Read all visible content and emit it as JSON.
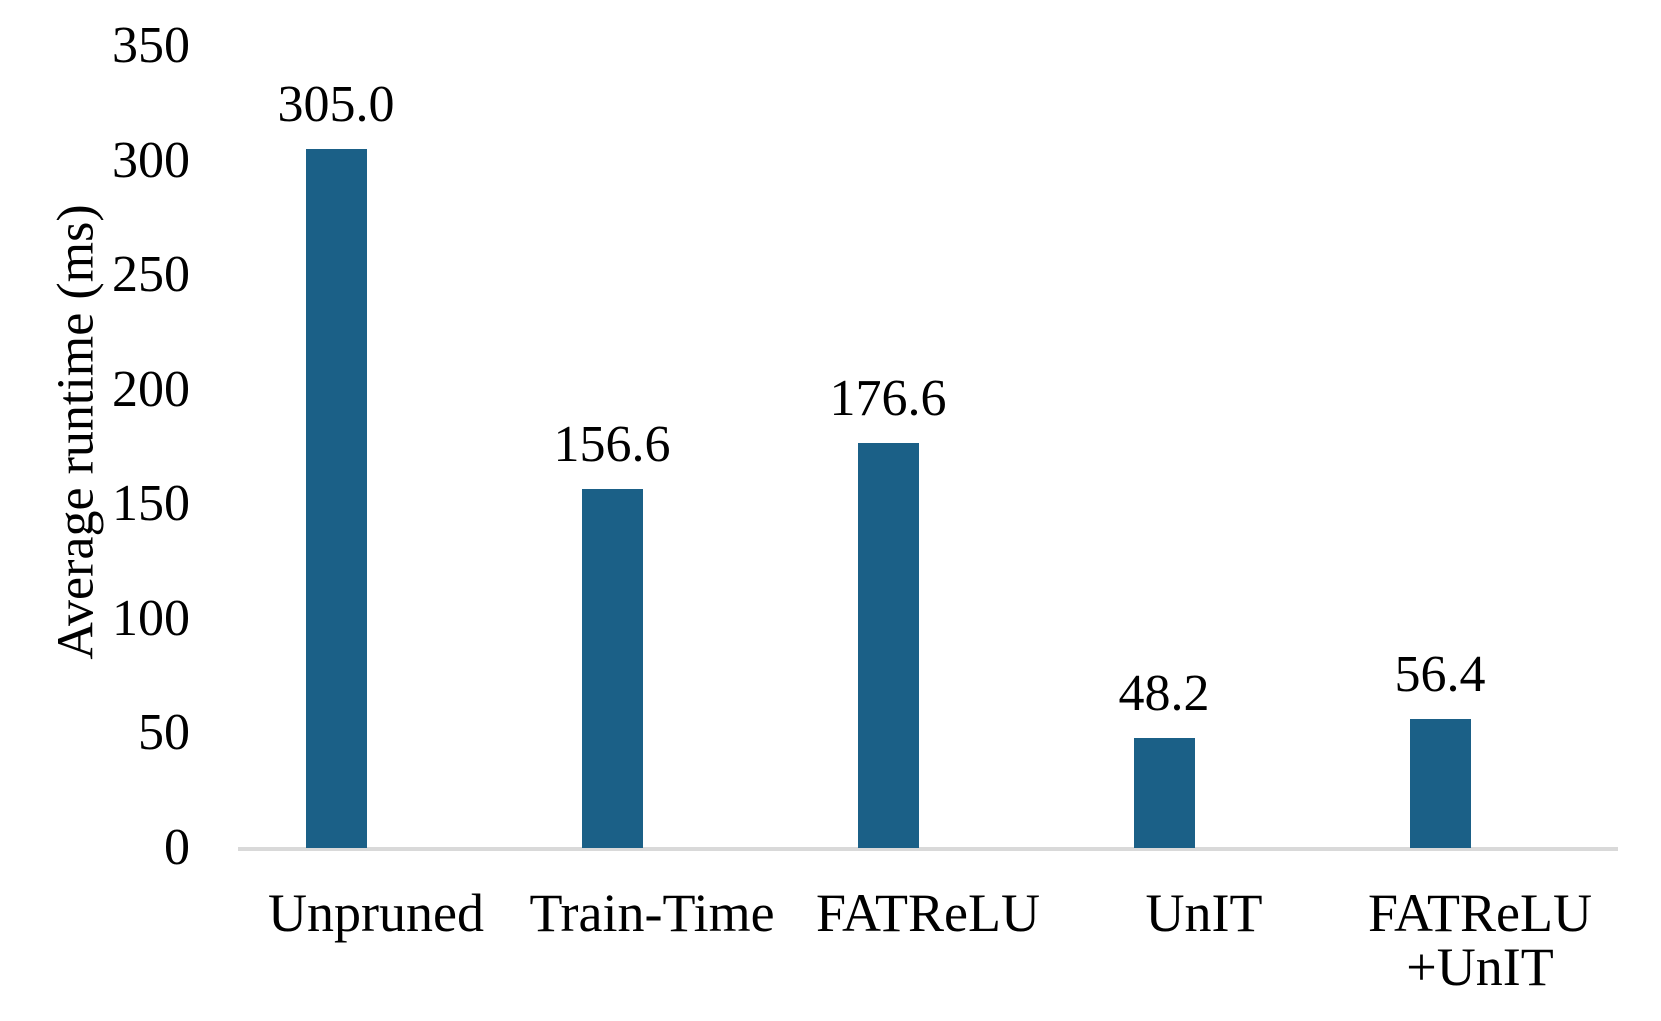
{
  "chart_data": {
    "type": "bar",
    "title": "",
    "ylabel": "Average runtime (ms)",
    "xlabel": "",
    "categories": [
      "Unpruned",
      "Train-Time",
      "FATReLU",
      "UnIT",
      "FATReLU\n+UnIT"
    ],
    "values": [
      305.0,
      156.6,
      176.6,
      48.2,
      56.4
    ],
    "value_labels": [
      "305.0",
      "156.6",
      "176.6",
      "48.2",
      "56.4"
    ],
    "ylim": [
      0,
      350
    ],
    "yticks": [
      350,
      300,
      250,
      200,
      150,
      100,
      50,
      0
    ],
    "ytick_labels": [
      "350",
      "300",
      "250",
      "200",
      "150",
      "100",
      "50",
      "0"
    ],
    "grid": false,
    "legend": "none",
    "colors": {
      "bar": "#1B6087",
      "axis_line": "#D9D9D9",
      "text": "#000000",
      "background": "#FFFFFF"
    }
  }
}
